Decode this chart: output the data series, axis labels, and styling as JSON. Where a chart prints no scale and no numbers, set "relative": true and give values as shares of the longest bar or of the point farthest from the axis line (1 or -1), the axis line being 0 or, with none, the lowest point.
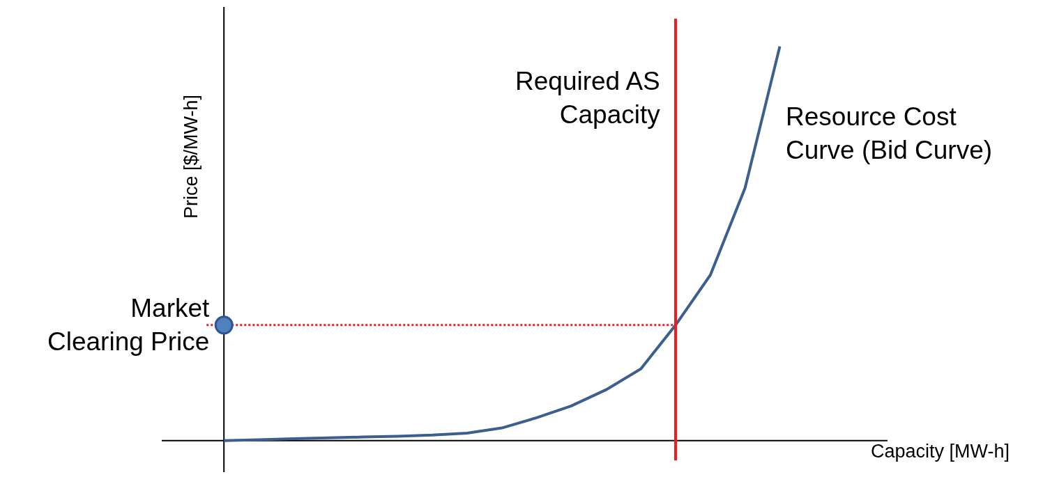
{
  "chart_data": {
    "type": "line",
    "relative": true,
    "xlabel": "Capacity [MW-h]",
    "ylabel": "Price [$/MW-h]",
    "categories": [
      null,
      null,
      null,
      null,
      null,
      null,
      null,
      null,
      null,
      null,
      null,
      null,
      null,
      null,
      null,
      null,
      null
    ],
    "series": [
      {
        "name": "Resource Cost\nCurve (Bid Curve)",
        "color": "#3b5f8e",
        "values": [
          0,
          0.002,
          0.005,
          0.007,
          0.009,
          0.011,
          0.014,
          0.019,
          0.032,
          0.058,
          0.088,
          0.129,
          0.182,
          0.293,
          0.42,
          0.641,
          1.0
        ]
      }
    ],
    "ref_lines": [
      {
        "axis": "y",
        "value": 0.293,
        "label": "Market\nClearing Price",
        "color": "#ee1c1c",
        "line_style": "dotted"
      }
    ],
    "annotations": [
      "Required AS\nCapacity"
    ],
    "grid": false
  }
}
